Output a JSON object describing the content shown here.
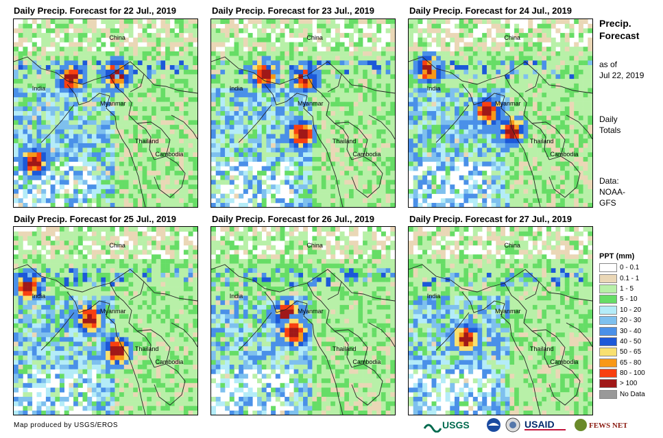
{
  "panels": [
    {
      "title": "Daily Precip. Forecast for 22 Jul., 2019",
      "seed": 11,
      "hot": [
        [
          0.3,
          0.3
        ],
        [
          0.55,
          0.28
        ],
        [
          0.1,
          0.75
        ]
      ]
    },
    {
      "title": "Daily Precip. Forecast for 23 Jul., 2019",
      "seed": 23,
      "hot": [
        [
          0.28,
          0.28
        ],
        [
          0.5,
          0.3
        ],
        [
          0.48,
          0.6
        ]
      ]
    },
    {
      "title": "Daily Precip. Forecast for 24 Jul., 2019",
      "seed": 37,
      "hot": [
        [
          0.1,
          0.25
        ],
        [
          0.42,
          0.48
        ],
        [
          0.55,
          0.58
        ]
      ]
    },
    {
      "title": "Daily Precip. Forecast for 25 Jul., 2019",
      "seed": 41,
      "hot": [
        [
          0.4,
          0.48
        ],
        [
          0.07,
          0.3
        ],
        [
          0.55,
          0.65
        ]
      ]
    },
    {
      "title": "Daily Precip. Forecast for 26 Jul., 2019",
      "seed": 53,
      "hot": [
        [
          0.4,
          0.45
        ],
        [
          0.44,
          0.55
        ]
      ]
    },
    {
      "title": "Daily Precip. Forecast for 27 Jul., 2019",
      "seed": 67,
      "hot": [
        [
          0.3,
          0.58
        ]
      ]
    }
  ],
  "countries": [
    "China",
    "India",
    "Myanmar",
    "Thailand",
    "Cambodia"
  ],
  "side": {
    "title_line1": "Precip.",
    "title_line2": "Forecast",
    "asof_line1": "as of",
    "asof_line2": "Jul 22, 2019",
    "totals_line1": "Daily",
    "totals_line2": "Totals",
    "data_line1": "Data:",
    "data_line2": "NOAA-",
    "data_line3": "GFS"
  },
  "legend": {
    "title": "PPT (mm)",
    "items": [
      {
        "label": "0 - 0.1",
        "color": "#ffffff"
      },
      {
        "label": "0.1 - 1",
        "color": "#ead7b6"
      },
      {
        "label": "1 - 5",
        "color": "#b8f0a8"
      },
      {
        "label": "5 - 10",
        "color": "#66dd66"
      },
      {
        "label": "10 - 20",
        "color": "#b4ecf8"
      },
      {
        "label": "20 - 30",
        "color": "#7ec0ee"
      },
      {
        "label": "30 - 40",
        "color": "#4a90e8"
      },
      {
        "label": "40 - 50",
        "color": "#1c58d8"
      },
      {
        "label": "50 - 65",
        "color": "#f8e070"
      },
      {
        "label": "65 - 80",
        "color": "#f89818"
      },
      {
        "label": "80 - 100",
        "color": "#f84010"
      },
      {
        "label": "> 100",
        "color": "#a01818"
      },
      {
        "label": "No Data",
        "color": "#999999"
      }
    ]
  },
  "credit": "Map produced by USGS/EROS",
  "logos": {
    "usgs": "USGS",
    "usaid": "USAID",
    "fews": "FEWS NET"
  }
}
